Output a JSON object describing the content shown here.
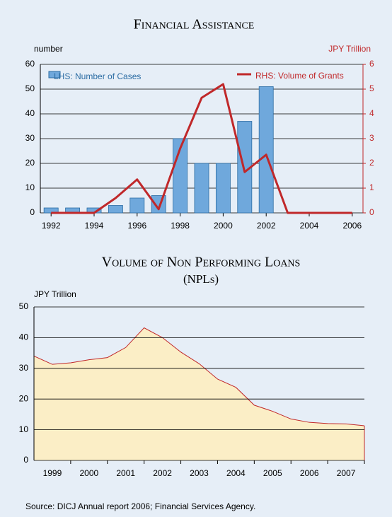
{
  "chart_data": [
    {
      "type": "combo",
      "title": "Financial Assistance",
      "y_label": "number",
      "y2_label": "JPY Trillion",
      "x": [
        1992,
        1993,
        1994,
        1995,
        1996,
        1997,
        1998,
        1999,
        2000,
        2001,
        2002,
        2003,
        2004,
        2005,
        2006
      ],
      "xlim": [
        1991.5,
        2006.5
      ],
      "xticks": [
        1992,
        1994,
        1996,
        1998,
        2000,
        2002,
        2004,
        2006
      ],
      "ylim": [
        0,
        60
      ],
      "yticks": [
        0,
        10,
        20,
        30,
        40,
        50,
        60
      ],
      "y2lim": [
        0,
        6
      ],
      "y2ticks": [
        0,
        1,
        2,
        3,
        4,
        5,
        6
      ],
      "grid": true,
      "series": [
        {
          "name": "LHS: Number of Cases",
          "type": "bar",
          "color": "#6fa8dc",
          "values": [
            2,
            2,
            2,
            3,
            6,
            7,
            30,
            20,
            20,
            37,
            51,
            null,
            null,
            null,
            null
          ]
        },
        {
          "name": "RHS: Volume of Grants",
          "type": "line",
          "axis": "y2",
          "color": "#c0282a",
          "values": [
            0,
            0,
            0,
            0.6,
            1.35,
            0.15,
            2.6,
            4.65,
            5.2,
            1.65,
            2.35,
            0,
            0,
            0,
            0
          ]
        }
      ]
    },
    {
      "type": "area",
      "title": "Volume of Non Performing Loans",
      "subtitle": "(NPLs)",
      "y_label": "JPY Trillion",
      "x": [
        1998.5,
        1999,
        1999.5,
        2000,
        2000.5,
        2001,
        2001.5,
        2002,
        2002.5,
        2003,
        2003.5,
        2004,
        2004.5,
        2005,
        2005.5,
        2006,
        2006.5,
        2007,
        2007.5
      ],
      "xlim": [
        1998.5,
        2007.5
      ],
      "xticks": [
        1999,
        2000,
        2001,
        2002,
        2003,
        2004,
        2005,
        2006,
        2007
      ],
      "ylim": [
        0,
        50
      ],
      "yticks": [
        0,
        10,
        20,
        30,
        40,
        50
      ],
      "grid": true,
      "series": [
        {
          "name": "NPLs",
          "color": "#c0282a",
          "fill": "#fbeec6",
          "values": [
            34,
            31.3,
            31.8,
            32.8,
            33.5,
            36.8,
            43.2,
            40,
            35.3,
            31.5,
            26.5,
            23.8,
            18,
            16,
            13.5,
            12.4,
            12,
            11.9,
            11.3
          ]
        }
      ]
    }
  ],
  "source": "Source: DICJ Annual report 2006; Financial Services Agency."
}
